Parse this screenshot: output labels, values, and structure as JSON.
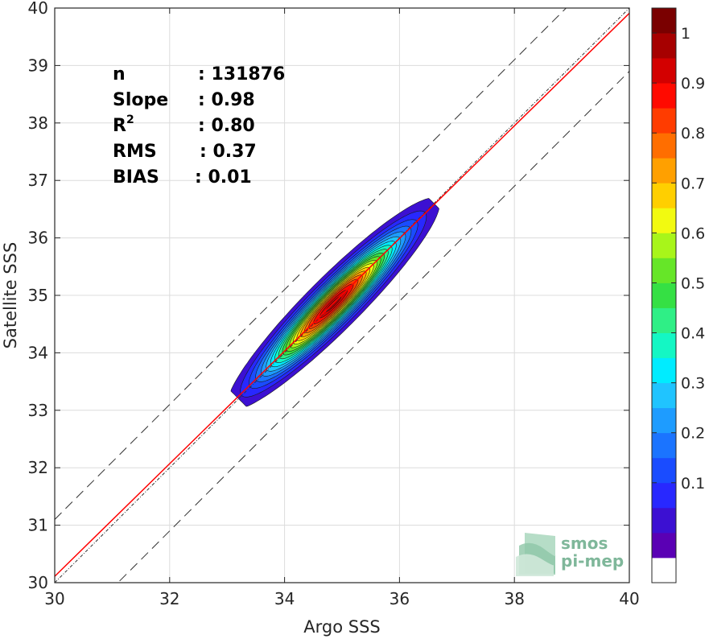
{
  "chart_data": {
    "type": "heatmap",
    "subtype": "density-contour",
    "xlabel": "Argo SSS",
    "ylabel": "Satellite SSS",
    "xlim": [
      30,
      40
    ],
    "ylim": [
      30,
      40
    ],
    "xticks": [
      30,
      32,
      34,
      36,
      38,
      40
    ],
    "yticks": [
      30,
      31,
      32,
      33,
      34,
      35,
      36,
      37,
      38,
      39,
      40
    ],
    "grid": true,
    "stats": [
      {
        "label": "n",
        "value": ": 131876"
      },
      {
        "label": "Slope",
        "value": ": 0.98"
      },
      {
        "label": "R",
        "superscript": "2",
        "value": ": 0.80"
      },
      {
        "label": "RMS",
        "value": ": 0.37"
      },
      {
        "label": "BIAS",
        "value": ": 0.01"
      }
    ],
    "fit_line": {
      "slope": 0.98,
      "intercept": 0.71,
      "color": "#ff0000"
    },
    "identity_line": {
      "slope": 1,
      "intercept": 0
    },
    "bounds_offset": 1.1,
    "density": {
      "center": [
        34.85,
        34.85
      ],
      "major_direction": [
        1,
        1
      ],
      "major_sigma": 1.05,
      "minor_sigma": 0.19,
      "lower_cutoff": 33.2,
      "upper_cutoff": 36.6
    },
    "colorbar": {
      "ticks": [
        0.1,
        0.2,
        0.3,
        0.4,
        0.5,
        0.6,
        0.7,
        0.8,
        0.9,
        1
      ],
      "tick_labels": [
        "0.1",
        "0.2",
        "0.3",
        "0.4",
        "0.5",
        "0.6",
        "0.7",
        "0.8",
        "0.9",
        "1"
      ],
      "levels": 20,
      "colors": [
        "#ffffff",
        "#5a00b4",
        "#3c10d2",
        "#2828ff",
        "#1a4cff",
        "#1b74ff",
        "#1e9cff",
        "#20c4ff",
        "#00ecff",
        "#14f7c4",
        "#2fef86",
        "#35e044",
        "#66e628",
        "#a8f51a",
        "#f2fa10",
        "#ffcf00",
        "#ffa000",
        "#ff6e00",
        "#ff3c00",
        "#ff0a00",
        "#d30000",
        "#a60000",
        "#7a0000"
      ]
    }
  },
  "logo": {
    "line1": "smos",
    "line2": "pi-mep"
  }
}
